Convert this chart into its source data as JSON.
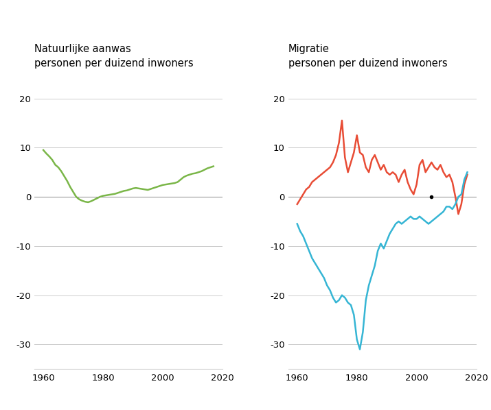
{
  "left_title_line1": "Natuurlijke aanwas",
  "left_title_line2": "personen per duizend inwoners",
  "right_title_line1": "Migratie",
  "right_title_line2": "personen per duizend inwoners",
  "ylim": [
    -35,
    25
  ],
  "yticks": [
    -30,
    -20,
    -10,
    0,
    10,
    20
  ],
  "xlim_left": [
    1957,
    2020
  ],
  "xlim_right": [
    1957,
    2020
  ],
  "xticks": [
    1960,
    1980,
    2000,
    2020
  ],
  "green_color": "#7ab648",
  "red_color": "#e84c35",
  "blue_color": "#35b5d4",
  "bg_color": "#ffffff",
  "grid_color": "#cccccc",
  "zero_line_color": "#999999",
  "title_fontsize": 10.5,
  "label_fontsize": 9.5,
  "tick_fontsize": 9.5,
  "left_years": [
    1960,
    1961,
    1962,
    1963,
    1964,
    1965,
    1966,
    1967,
    1968,
    1969,
    1970,
    1971,
    1972,
    1973,
    1974,
    1975,
    1976,
    1977,
    1978,
    1979,
    1980,
    1981,
    1982,
    1983,
    1984,
    1985,
    1986,
    1987,
    1988,
    1989,
    1990,
    1991,
    1992,
    1993,
    1994,
    1995,
    1996,
    1997,
    1998,
    1999,
    2000,
    2001,
    2002,
    2003,
    2004,
    2005,
    2006,
    2007,
    2008,
    2009,
    2010,
    2011,
    2012,
    2013,
    2014,
    2015,
    2016,
    2017
  ],
  "left_values": [
    9.5,
    8.8,
    8.2,
    7.5,
    6.5,
    6.0,
    5.2,
    4.2,
    3.2,
    2.0,
    1.0,
    0.0,
    -0.5,
    -0.8,
    -1.0,
    -1.1,
    -0.9,
    -0.6,
    -0.3,
    0.0,
    0.2,
    0.3,
    0.4,
    0.5,
    0.6,
    0.8,
    1.0,
    1.2,
    1.3,
    1.5,
    1.7,
    1.8,
    1.7,
    1.6,
    1.5,
    1.4,
    1.6,
    1.8,
    2.0,
    2.2,
    2.4,
    2.5,
    2.6,
    2.7,
    2.8,
    3.0,
    3.5,
    4.0,
    4.3,
    4.5,
    4.7,
    4.8,
    5.0,
    5.2,
    5.5,
    5.8,
    6.0,
    6.2
  ],
  "red_years": [
    1960,
    1961,
    1962,
    1963,
    1964,
    1965,
    1966,
    1967,
    1968,
    1969,
    1970,
    1971,
    1972,
    1973,
    1974,
    1975,
    1976,
    1977,
    1978,
    1979,
    1980,
    1981,
    1982,
    1983,
    1984,
    1985,
    1986,
    1987,
    1988,
    1989,
    1990,
    1991,
    1992,
    1993,
    1994,
    1995,
    1996,
    1997,
    1998,
    1999,
    2000,
    2001,
    2002,
    2003,
    2004,
    2005,
    2006,
    2007,
    2008,
    2009,
    2010,
    2011,
    2012,
    2013,
    2014,
    2015,
    2016,
    2017
  ],
  "red_values": [
    -1.5,
    -0.5,
    0.5,
    1.5,
    2.0,
    3.0,
    3.5,
    4.0,
    4.5,
    5.0,
    5.5,
    6.0,
    7.0,
    8.5,
    11.0,
    15.5,
    8.0,
    5.0,
    7.0,
    9.0,
    12.5,
    9.0,
    8.5,
    6.0,
    5.0,
    7.5,
    8.5,
    7.0,
    5.5,
    6.5,
    5.0,
    4.5,
    5.0,
    4.5,
    3.0,
    4.5,
    5.5,
    3.0,
    1.5,
    0.5,
    2.5,
    6.5,
    7.5,
    5.0,
    6.0,
    7.0,
    6.0,
    5.5,
    6.5,
    5.0,
    4.0,
    4.5,
    3.0,
    0.0,
    -3.5,
    -1.5,
    2.5,
    4.5
  ],
  "blue_years": [
    1960,
    1961,
    1962,
    1963,
    1964,
    1965,
    1966,
    1967,
    1968,
    1969,
    1970,
    1971,
    1972,
    1973,
    1974,
    1975,
    1976,
    1977,
    1978,
    1979,
    1980,
    1981,
    1982,
    1983,
    1984,
    1985,
    1986,
    1987,
    1988,
    1989,
    1990,
    1991,
    1992,
    1993,
    1994,
    1995,
    1996,
    1997,
    1998,
    1999,
    2000,
    2001,
    2002,
    2003,
    2004,
    2005,
    2006,
    2007,
    2008,
    2009,
    2010,
    2011,
    2012,
    2013,
    2014,
    2015,
    2016,
    2017
  ],
  "blue_values": [
    -5.5,
    -7.0,
    -8.0,
    -9.5,
    -11.0,
    -12.5,
    -13.5,
    -14.5,
    -15.5,
    -16.5,
    -18.0,
    -19.0,
    -20.5,
    -21.5,
    -21.0,
    -20.0,
    -20.5,
    -21.5,
    -22.0,
    -24.0,
    -29.0,
    -31.0,
    -27.5,
    -21.0,
    -18.0,
    -16.0,
    -14.0,
    -11.0,
    -9.5,
    -10.5,
    -9.0,
    -7.5,
    -6.5,
    -5.5,
    -5.0,
    -5.5,
    -5.0,
    -4.5,
    -4.0,
    -4.5,
    -4.5,
    -4.0,
    -4.5,
    -5.0,
    -5.5,
    -5.0,
    -4.5,
    -4.0,
    -3.5,
    -3.0,
    -2.0,
    -2.0,
    -2.5,
    -1.5,
    0.0,
    0.5,
    3.5,
    5.0
  ]
}
